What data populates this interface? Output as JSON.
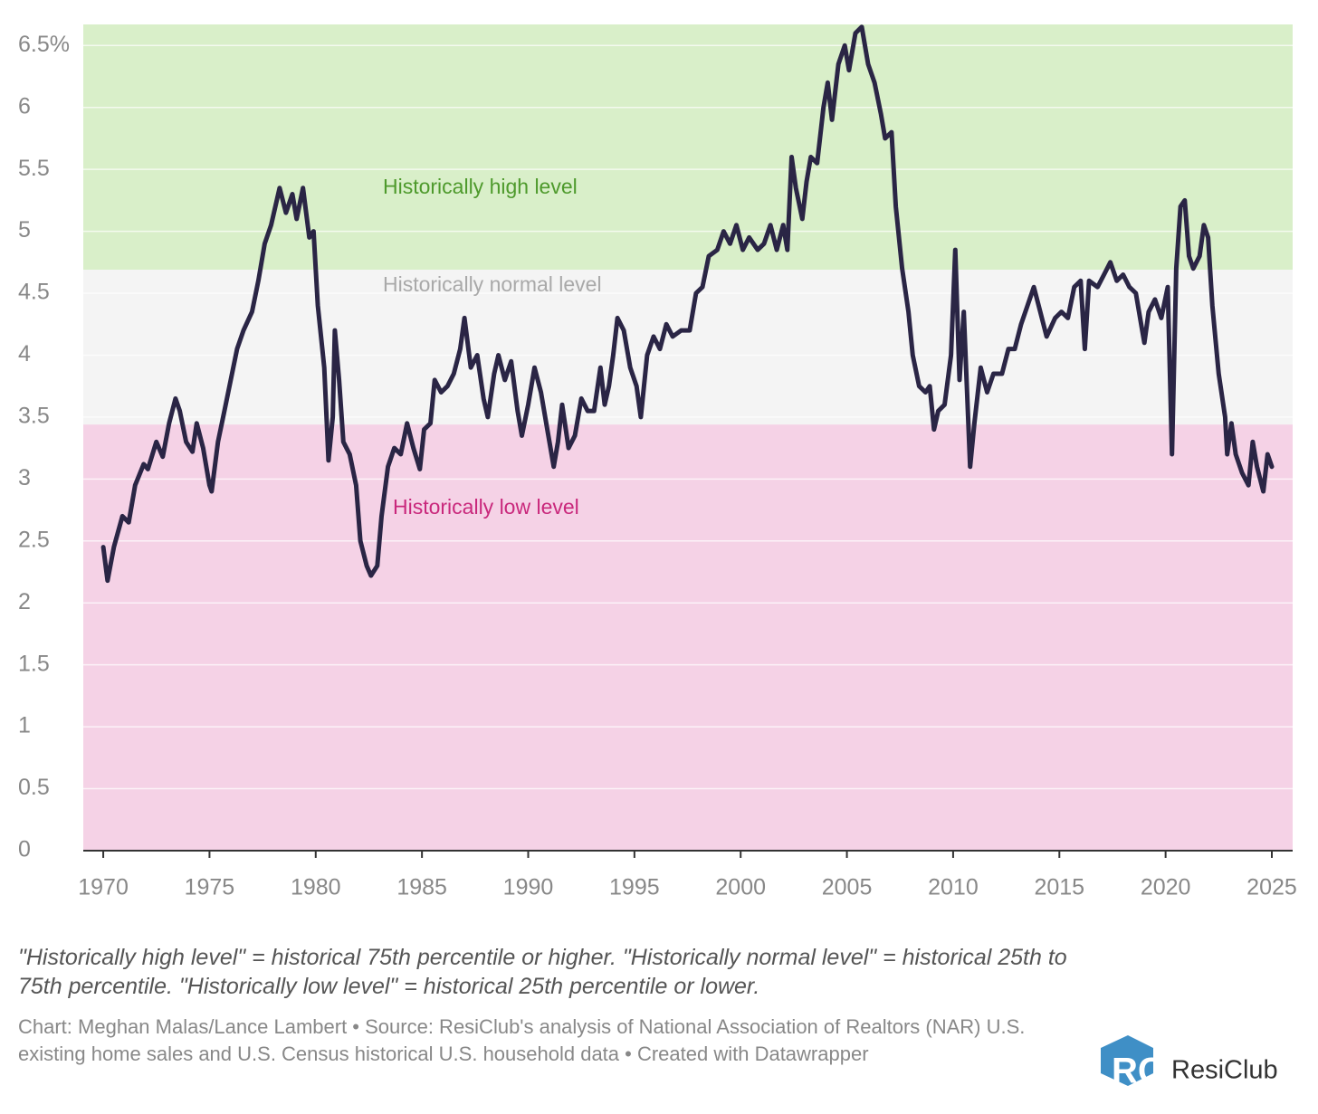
{
  "chart_data": {
    "type": "line",
    "x": [
      1970.0,
      1970.2,
      1970.5,
      1970.9,
      1971.2,
      1971.5,
      1971.9,
      1972.1,
      1972.5,
      1972.8,
      1973.1,
      1973.4,
      1973.6,
      1973.9,
      1974.2,
      1974.4,
      1974.7,
      1975.0,
      1975.1,
      1975.4,
      1975.7,
      1976.0,
      1976.3,
      1976.6,
      1977.0,
      1977.3,
      1977.6,
      1977.9,
      1978.1,
      1978.3,
      1978.6,
      1978.9,
      1979.1,
      1979.4,
      1979.7,
      1979.9,
      1980.1,
      1980.4,
      1980.6,
      1980.8,
      1980.9,
      1981.1,
      1981.3,
      1981.6,
      1981.9,
      1982.1,
      1982.4,
      1982.6,
      1982.9,
      1983.1,
      1983.4,
      1983.7,
      1984.0,
      1984.3,
      1984.6,
      1984.9,
      1985.1,
      1985.4,
      1985.6,
      1985.9,
      1986.2,
      1986.5,
      1986.8,
      1987.0,
      1987.3,
      1987.6,
      1987.9,
      1988.1,
      1988.4,
      1988.6,
      1988.9,
      1989.2,
      1989.5,
      1989.7,
      1990.0,
      1990.3,
      1990.6,
      1990.9,
      1991.2,
      1991.4,
      1991.6,
      1991.9,
      1992.2,
      1992.5,
      1992.8,
      1993.1,
      1993.4,
      1993.6,
      1993.8,
      1994.0,
      1994.2,
      1994.5,
      1994.8,
      1995.1,
      1995.3,
      1995.6,
      1995.9,
      1996.2,
      1996.5,
      1996.8,
      1997.2,
      1997.6,
      1997.9,
      1998.2,
      1998.5,
      1998.9,
      1999.2,
      1999.5,
      1999.8,
      2000.1,
      2000.4,
      2000.8,
      2001.1,
      2001.4,
      2001.7,
      2002.0,
      2002.2,
      2002.4,
      2002.6,
      2002.9,
      2003.1,
      2003.3,
      2003.6,
      2003.9,
      2004.1,
      2004.3,
      2004.6,
      2004.9,
      2005.1,
      2005.4,
      2005.7,
      2006.0,
      2006.3,
      2006.6,
      2006.8,
      2007.1,
      2007.3,
      2007.6,
      2007.9,
      2008.1,
      2008.4,
      2008.7,
      2008.9,
      2009.1,
      2009.3,
      2009.6,
      2009.9,
      2010.1,
      2010.3,
      2010.5,
      2010.8,
      2011.0,
      2011.3,
      2011.6,
      2011.9,
      2012.3,
      2012.6,
      2012.9,
      2013.2,
      2013.5,
      2013.8,
      2014.1,
      2014.4,
      2014.8,
      2015.1,
      2015.4,
      2015.7,
      2016.0,
      2016.2,
      2016.4,
      2016.8,
      2017.1,
      2017.4,
      2017.7,
      2018.0,
      2018.3,
      2018.6,
      2018.9,
      2019.0,
      2019.2,
      2019.5,
      2019.8,
      2020.1,
      2020.3,
      2020.5,
      2020.7,
      2020.9,
      2021.1,
      2021.3,
      2021.6,
      2021.8,
      2022.0,
      2022.2,
      2022.5,
      2022.8,
      2022.9,
      2023.1,
      2023.3,
      2023.6,
      2023.9,
      2024.1,
      2024.3,
      2024.6,
      2024.8,
      2025.0
    ],
    "series": [
      {
        "color": "#2a2545",
        "values": [
          2.45,
          2.18,
          2.45,
          2.7,
          2.65,
          2.95,
          3.12,
          3.08,
          3.3,
          3.18,
          3.45,
          3.65,
          3.55,
          3.3,
          3.22,
          3.45,
          3.25,
          2.95,
          2.9,
          3.3,
          3.55,
          3.8,
          4.05,
          4.2,
          4.35,
          4.6,
          4.9,
          5.05,
          5.2,
          5.35,
          5.15,
          5.3,
          5.1,
          5.35,
          4.95,
          5.0,
          4.4,
          3.9,
          3.15,
          3.5,
          4.2,
          3.8,
          3.3,
          3.2,
          2.95,
          2.5,
          2.3,
          2.22,
          2.3,
          2.7,
          3.1,
          3.25,
          3.2,
          3.45,
          3.25,
          3.08,
          3.4,
          3.45,
          3.8,
          3.7,
          3.75,
          3.85,
          4.05,
          4.3,
          3.9,
          4.0,
          3.65,
          3.5,
          3.85,
          4.0,
          3.8,
          3.95,
          3.55,
          3.35,
          3.6,
          3.9,
          3.7,
          3.4,
          3.1,
          3.3,
          3.6,
          3.25,
          3.35,
          3.65,
          3.55,
          3.55,
          3.9,
          3.6,
          3.75,
          4.0,
          4.3,
          4.2,
          3.9,
          3.75,
          3.5,
          4.0,
          4.15,
          4.05,
          4.25,
          4.15,
          4.2,
          4.2,
          4.5,
          4.55,
          4.8,
          4.85,
          5.0,
          4.9,
          5.05,
          4.85,
          4.95,
          4.85,
          4.9,
          5.05,
          4.85,
          5.05,
          4.85,
          5.6,
          5.35,
          5.1,
          5.4,
          5.6,
          5.55,
          6.0,
          6.2,
          5.9,
          6.35,
          6.5,
          6.3,
          6.6,
          6.65,
          6.35,
          6.2,
          5.95,
          5.75,
          5.8,
          5.2,
          4.7,
          4.35,
          4.0,
          3.75,
          3.7,
          3.75,
          3.4,
          3.55,
          3.6,
          4.0,
          4.85,
          3.8,
          4.35,
          3.1,
          3.45,
          3.9,
          3.7,
          3.85,
          3.85,
          4.05,
          4.05,
          4.25,
          4.4,
          4.55,
          4.35,
          4.15,
          4.3,
          4.35,
          4.3,
          4.55,
          4.6,
          4.05,
          4.6,
          4.55,
          4.65,
          4.75,
          4.6,
          4.65,
          4.55,
          4.5,
          4.2,
          4.1,
          4.35,
          4.45,
          4.3,
          4.55,
          3.2,
          4.7,
          5.2,
          5.25,
          4.8,
          4.7,
          4.8,
          5.05,
          4.95,
          4.4,
          3.85,
          3.5,
          3.2,
          3.45,
          3.2,
          3.05,
          2.95,
          3.3,
          3.1,
          2.9,
          3.2,
          3.1
        ]
      }
    ],
    "xlim": [
      1969.06,
      2025.98
    ],
    "ylim": [
      0,
      6.67
    ],
    "xticks": [
      1970,
      1975,
      1980,
      1985,
      1990,
      1995,
      2000,
      2005,
      2010,
      2015,
      2020,
      2025
    ],
    "yticks": [
      0,
      0.5,
      1,
      1.5,
      2,
      2.5,
      3,
      3.5,
      4,
      4.5,
      5,
      5.5,
      6,
      {
        "value": 6.5,
        "label": "6.5%"
      }
    ],
    "grid": true,
    "bands": [
      {
        "label": "Historically high level",
        "from": 4.69,
        "to": 6.67,
        "color": "#d9efc9",
        "label_color": "#4e9a2c"
      },
      {
        "label": "Historically normal level",
        "from": 3.44,
        "to": 4.69,
        "color": "#f4f4f4",
        "label_color": "#a9a9a9"
      },
      {
        "label": "Historically low level",
        "from": 0,
        "to": 3.44,
        "color": "#f5d2e6",
        "label_color": "#c9287c"
      }
    ],
    "footnote": "\"Historically high level\" = historical 75th percentile or higher. \"Historically normal level\" = historical 25th to 75th percentile. \"Historically low level\" = historical 25th percentile or lower.",
    "credit": "Chart: Meghan Malas/Lance Lambert • Source: ResiClub's analysis of National Association of Realtors (NAR) U.S. existing home sales and U.S. Census historical U.S. household data • Created with Datawrapper",
    "brand": "ResiClub"
  }
}
